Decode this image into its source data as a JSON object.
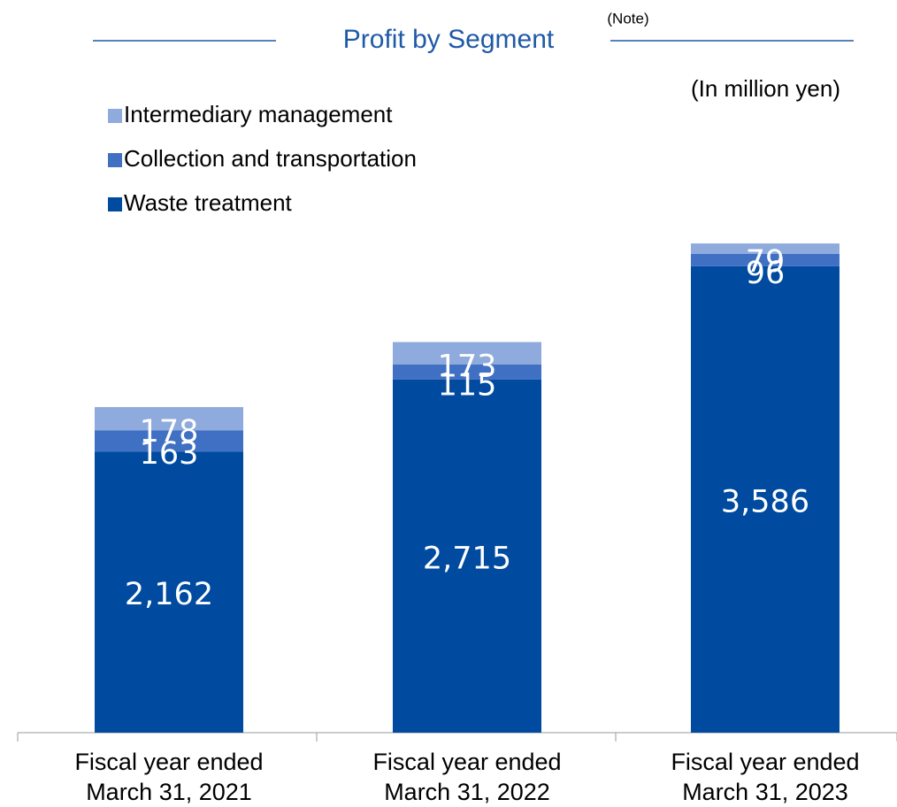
{
  "chart_data": {
    "type": "stacked_bar",
    "title": "Profit by Segment",
    "title_note": "(Note)",
    "unit_label": "(In million yen)",
    "categories": [
      "Fiscal year ended\nMarch 31, 2021",
      "Fiscal year ended\nMarch 31, 2022",
      "Fiscal year ended\nMarch 31, 2023"
    ],
    "legend": "upper left",
    "series": [
      {
        "name": "Waste treatment",
        "color": "#004a9f",
        "values": [
          2162,
          2715,
          3586
        ],
        "value_labels": [
          "2,162",
          "2,715",
          "3,586"
        ]
      },
      {
        "name": "Collection and transportation",
        "color": "#3f70c4",
        "values": [
          163,
          115,
          96
        ]
      },
      {
        "name": "Intermediary management",
        "color": "#8faadc",
        "values": [
          178,
          173,
          79
        ]
      }
    ]
  }
}
